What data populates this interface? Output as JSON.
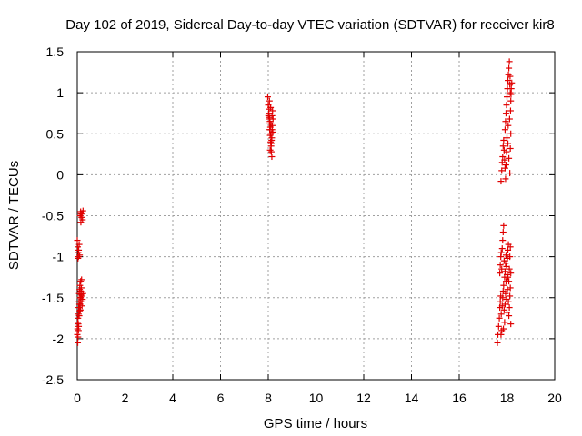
{
  "chart_data": {
    "type": "scatter",
    "title": "Day 102 of 2019, Sidereal Day-to-day VTEC variation (SDTVAR) for receiver kir8",
    "xlabel": "GPS time / hours",
    "ylabel": "SDTVAR / TECUs",
    "xlim": [
      0,
      20
    ],
    "ylim": [
      -2.5,
      1.5
    ],
    "x_ticks": [
      0,
      2,
      4,
      6,
      8,
      10,
      12,
      14,
      16,
      18,
      20
    ],
    "y_ticks": [
      -2.5,
      -2,
      -1.5,
      -1,
      -0.5,
      0,
      0.5,
      1,
      1.5
    ],
    "x_tick_labels": [
      "0",
      "2",
      "4",
      "6",
      "8",
      "10",
      "12",
      "14",
      "16",
      "18",
      "20"
    ],
    "y_tick_labels": [
      "-2.5",
      "-2",
      "-1.5",
      "-1",
      "-0.5",
      "0",
      "0.5",
      "1",
      "1.5"
    ],
    "grid": true,
    "marker": "+",
    "color": "#e00000",
    "series": [
      {
        "name": "SDTVAR",
        "points": [
          [
            0.0,
            -1.95
          ],
          [
            0.01,
            -1.88
          ],
          [
            0.02,
            -1.8
          ],
          [
            0.03,
            -1.75
          ],
          [
            0.04,
            -1.82
          ],
          [
            0.05,
            -1.7
          ],
          [
            0.06,
            -1.62
          ],
          [
            0.07,
            -1.55
          ],
          [
            0.08,
            -1.45
          ],
          [
            0.09,
            -1.58
          ],
          [
            0.1,
            -1.4
          ],
          [
            0.11,
            -1.35
          ],
          [
            0.12,
            -1.5
          ],
          [
            0.13,
            -1.65
          ],
          [
            0.14,
            -1.3
          ],
          [
            0.15,
            -1.42
          ],
          [
            0.16,
            -1.55
          ],
          [
            0.17,
            -1.38
          ],
          [
            0.18,
            -1.28
          ],
          [
            0.19,
            -1.48
          ],
          [
            0.2,
            -1.6
          ],
          [
            0.22,
            -1.52
          ],
          [
            0.24,
            -1.45
          ],
          [
            0.02,
            -2.05
          ],
          [
            0.03,
            -1.98
          ],
          [
            0.05,
            -1.9
          ],
          [
            0.06,
            -1.85
          ],
          [
            0.08,
            -1.72
          ],
          [
            0.1,
            -1.66
          ],
          [
            0.12,
            -1.58
          ],
          [
            0.14,
            -1.5
          ],
          [
            0.16,
            -1.46
          ],
          [
            0.0,
            -0.8
          ],
          [
            0.02,
            -0.88
          ],
          [
            0.04,
            -0.95
          ],
          [
            0.05,
            -1.0
          ],
          [
            0.06,
            -0.92
          ],
          [
            0.08,
            -0.85
          ],
          [
            0.1,
            -0.98
          ],
          [
            0.03,
            -1.02
          ],
          [
            0.12,
            -0.5
          ],
          [
            0.14,
            -0.45
          ],
          [
            0.16,
            -0.48
          ],
          [
            0.18,
            -0.52
          ],
          [
            0.2,
            -0.47
          ],
          [
            0.22,
            -0.55
          ],
          [
            0.24,
            -0.44
          ],
          [
            0.15,
            -0.58
          ],
          [
            7.98,
            0.95
          ],
          [
            8.0,
            0.85
          ],
          [
            8.02,
            0.75
          ],
          [
            8.04,
            0.7
          ],
          [
            8.05,
            0.62
          ],
          [
            8.06,
            0.55
          ],
          [
            8.08,
            0.48
          ],
          [
            8.1,
            0.4
          ],
          [
            8.12,
            0.35
          ],
          [
            8.13,
            0.28
          ],
          [
            8.15,
            0.22
          ],
          [
            8.03,
            0.8
          ],
          [
            8.07,
            0.65
          ],
          [
            8.09,
            0.58
          ],
          [
            8.11,
            0.5
          ],
          [
            8.14,
            0.42
          ],
          [
            8.16,
            0.72
          ],
          [
            8.18,
            0.78
          ],
          [
            8.2,
            0.68
          ],
          [
            8.17,
            0.6
          ],
          [
            8.19,
            0.52
          ],
          [
            8.05,
            0.9
          ],
          [
            8.01,
            0.72
          ],
          [
            8.08,
            0.3
          ],
          [
            8.12,
            0.62
          ],
          [
            8.15,
            0.45
          ],
          [
            8.1,
            0.82
          ],
          [
            8.13,
            0.38
          ],
          [
            8.06,
            0.68
          ],
          [
            8.16,
            0.55
          ],
          [
            17.6,
            -2.05
          ],
          [
            17.62,
            -1.95
          ],
          [
            17.65,
            -1.85
          ],
          [
            17.68,
            -1.75
          ],
          [
            17.7,
            -1.62
          ],
          [
            17.72,
            -1.55
          ],
          [
            17.74,
            -1.48
          ],
          [
            17.76,
            -1.7
          ],
          [
            17.78,
            -1.9
          ],
          [
            17.8,
            -1.6
          ],
          [
            17.82,
            -1.5
          ],
          [
            17.84,
            -1.42
          ],
          [
            17.86,
            -1.35
          ],
          [
            17.88,
            -1.65
          ],
          [
            17.9,
            -1.8
          ],
          [
            17.92,
            -1.58
          ],
          [
            17.94,
            -1.45
          ],
          [
            17.96,
            -1.3
          ],
          [
            17.98,
            -1.52
          ],
          [
            18.0,
            -1.68
          ],
          [
            18.02,
            -1.4
          ],
          [
            18.04,
            -1.25
          ],
          [
            18.06,
            -1.55
          ],
          [
            18.08,
            -1.72
          ],
          [
            18.1,
            -1.62
          ],
          [
            18.12,
            -1.48
          ],
          [
            18.14,
            -1.38
          ],
          [
            18.16,
            -1.82
          ],
          [
            17.75,
            -1.95
          ],
          [
            17.85,
            -1.88
          ],
          [
            17.7,
            -1.2
          ],
          [
            17.72,
            -1.1
          ],
          [
            17.74,
            -1.0
          ],
          [
            17.76,
            -0.95
          ],
          [
            17.78,
            -1.15
          ],
          [
            17.8,
            -0.9
          ],
          [
            17.82,
            -0.8
          ],
          [
            17.84,
            -0.7
          ],
          [
            17.86,
            -0.62
          ],
          [
            17.88,
            -1.05
          ],
          [
            17.9,
            -1.25
          ],
          [
            17.92,
            -1.18
          ],
          [
            17.94,
            -1.08
          ],
          [
            17.96,
            -0.98
          ],
          [
            17.98,
            -1.12
          ],
          [
            18.0,
            -1.22
          ],
          [
            18.02,
            -1.02
          ],
          [
            18.04,
            -0.92
          ],
          [
            18.06,
            -0.85
          ],
          [
            18.08,
            -1.3
          ],
          [
            18.1,
            -1.15
          ],
          [
            18.12,
            -1.0
          ],
          [
            18.14,
            -0.88
          ],
          [
            18.16,
            -1.2
          ],
          [
            17.78,
            0.05
          ],
          [
            17.8,
            0.15
          ],
          [
            17.82,
            0.22
          ],
          [
            17.84,
            0.35
          ],
          [
            17.86,
            0.42
          ],
          [
            17.88,
            0.3
          ],
          [
            17.9,
            0.18
          ],
          [
            17.92,
            0.08
          ],
          [
            17.94,
            -0.05
          ],
          [
            17.96,
            0.12
          ],
          [
            17.75,
            -0.08
          ],
          [
            17.98,
            0.28
          ],
          [
            18.0,
            0.45
          ],
          [
            18.04,
            0.38
          ],
          [
            18.08,
            0.2
          ],
          [
            18.12,
            0.02
          ],
          [
            18.14,
            0.32
          ],
          [
            18.16,
            0.5
          ],
          [
            17.92,
            0.55
          ],
          [
            17.94,
            0.65
          ],
          [
            17.96,
            0.75
          ],
          [
            17.98,
            0.85
          ],
          [
            18.0,
            0.95
          ],
          [
            18.02,
            1.05
          ],
          [
            18.04,
            1.15
          ],
          [
            18.06,
            1.22
          ],
          [
            18.08,
            1.3
          ],
          [
            18.1,
            1.38
          ],
          [
            18.12,
            1.1
          ],
          [
            18.14,
            1.0
          ],
          [
            18.16,
            0.9
          ],
          [
            18.18,
            1.05
          ],
          [
            18.2,
            1.12
          ],
          [
            18.15,
            0.78
          ],
          [
            18.11,
            0.68
          ],
          [
            18.05,
            0.6
          ],
          [
            18.13,
            1.2
          ],
          [
            18.17,
            0.98
          ]
        ]
      }
    ]
  }
}
